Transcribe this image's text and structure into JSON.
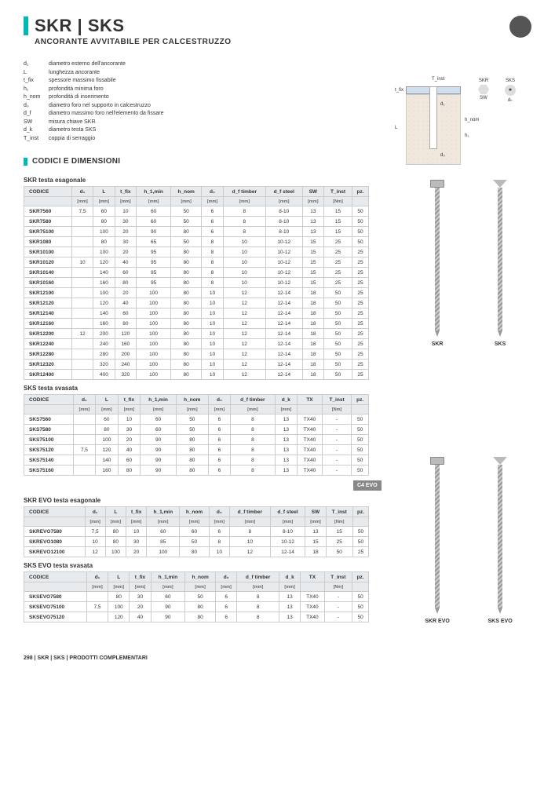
{
  "title": "SKR | SKS",
  "subtitle": "ANCORANTE AVVITABILE PER CALCESTRUZZO",
  "definitions": [
    {
      "sym": "d₁",
      "desc": "diametro esterno dell'ancorante"
    },
    {
      "sym": "L",
      "desc": "lunghezza ancorante"
    },
    {
      "sym": "t_fix",
      "desc": "spessore massimo fissabile"
    },
    {
      "sym": "h₁",
      "desc": "profondità minima foro"
    },
    {
      "sym": "h_nom",
      "desc": "profondità di inserimento"
    },
    {
      "sym": "d₀",
      "desc": "diametro foro nel supporto in calcestruzzo"
    },
    {
      "sym": "d_f",
      "desc": "diametro massimo foro nell'elemento da fissare"
    },
    {
      "sym": "SW",
      "desc": "misura chiave SKR"
    },
    {
      "sym": "d_k",
      "desc": "diametro testa SKS"
    },
    {
      "sym": "T_inst",
      "desc": "coppia di serraggio"
    }
  ],
  "sectionTitle": "CODICI E DIMENSIONI",
  "table1": {
    "title": "SKR testa esagonale",
    "headers": [
      "CODICE",
      "d₁",
      "L",
      "t_fix",
      "h_1,min",
      "h_nom",
      "d₀",
      "d_f timber",
      "d_f steel",
      "SW",
      "T_inst",
      "pz."
    ],
    "units": [
      "",
      "[mm]",
      "[mm]",
      "[mm]",
      "[mm]",
      "[mm]",
      "[mm]",
      "[mm]",
      "[mm]",
      "[mm]",
      "[Nm]",
      ""
    ],
    "rows": [
      [
        "SKR7560",
        "7,5",
        "60",
        "10",
        "60",
        "50",
        "6",
        "8",
        "8-10",
        "13",
        "15",
        "50"
      ],
      [
        "SKR7580",
        "",
        "80",
        "30",
        "60",
        "50",
        "6",
        "8",
        "8-10",
        "13",
        "15",
        "50"
      ],
      [
        "SKR75100",
        "",
        "100",
        "20",
        "90",
        "80",
        "6",
        "8",
        "8-10",
        "13",
        "15",
        "50"
      ],
      [
        "SKR1080",
        "",
        "80",
        "30",
        "65",
        "50",
        "8",
        "10",
        "10-12",
        "15",
        "25",
        "50"
      ],
      [
        "SKR10100",
        "",
        "100",
        "20",
        "95",
        "80",
        "8",
        "10",
        "10-12",
        "15",
        "25",
        "25"
      ],
      [
        "SKR10120",
        "10",
        "120",
        "40",
        "95",
        "80",
        "8",
        "10",
        "10-12",
        "15",
        "25",
        "25"
      ],
      [
        "SKR10140",
        "",
        "140",
        "60",
        "95",
        "80",
        "8",
        "10",
        "10-12",
        "15",
        "25",
        "25"
      ],
      [
        "SKR10160",
        "",
        "160",
        "80",
        "95",
        "80",
        "8",
        "10",
        "10-12",
        "15",
        "25",
        "25"
      ],
      [
        "SKR12100",
        "",
        "100",
        "20",
        "100",
        "80",
        "10",
        "12",
        "12-14",
        "18",
        "50",
        "25"
      ],
      [
        "SKR12120",
        "",
        "120",
        "40",
        "100",
        "80",
        "10",
        "12",
        "12-14",
        "18",
        "50",
        "25"
      ],
      [
        "SKR12140",
        "",
        "140",
        "60",
        "100",
        "80",
        "10",
        "12",
        "12-14",
        "18",
        "50",
        "25"
      ],
      [
        "SKR12160",
        "",
        "160",
        "80",
        "100",
        "80",
        "10",
        "12",
        "12-14",
        "18",
        "50",
        "25"
      ],
      [
        "SKR12200",
        "12",
        "200",
        "120",
        "100",
        "80",
        "10",
        "12",
        "12-14",
        "18",
        "50",
        "25"
      ],
      [
        "SKR12240",
        "",
        "240",
        "160",
        "100",
        "80",
        "10",
        "12",
        "12-14",
        "18",
        "50",
        "25"
      ],
      [
        "SKR12280",
        "",
        "280",
        "200",
        "100",
        "80",
        "10",
        "12",
        "12-14",
        "18",
        "50",
        "25"
      ],
      [
        "SKR12320",
        "",
        "320",
        "240",
        "100",
        "80",
        "10",
        "12",
        "12-14",
        "18",
        "50",
        "25"
      ],
      [
        "SKR12400",
        "",
        "400",
        "320",
        "100",
        "80",
        "10",
        "12",
        "12-14",
        "18",
        "50",
        "25"
      ]
    ]
  },
  "table2": {
    "title": "SKS testa svasata",
    "headers": [
      "CODICE",
      "d₁",
      "L",
      "t_fix",
      "h_1,min",
      "h_nom",
      "d₀",
      "d_f timber",
      "d_k",
      "TX",
      "T_inst",
      "pz."
    ],
    "units": [
      "",
      "[mm]",
      "[mm]",
      "[mm]",
      "[mm]",
      "[mm]",
      "[mm]",
      "[mm]",
      "[mm]",
      "",
      "[Nm]",
      ""
    ],
    "rows": [
      [
        "SKS7560",
        "",
        "60",
        "10",
        "60",
        "50",
        "6",
        "8",
        "13",
        "TX40",
        "-",
        "50"
      ],
      [
        "SKS7580",
        "",
        "80",
        "30",
        "60",
        "50",
        "6",
        "8",
        "13",
        "TX40",
        "-",
        "50"
      ],
      [
        "SKS75100",
        "",
        "100",
        "20",
        "90",
        "80",
        "6",
        "8",
        "13",
        "TX40",
        "-",
        "50"
      ],
      [
        "SKS75120",
        "7,5",
        "120",
        "40",
        "90",
        "80",
        "6",
        "8",
        "13",
        "TX40",
        "-",
        "50"
      ],
      [
        "SKS75140",
        "",
        "140",
        "60",
        "90",
        "80",
        "6",
        "8",
        "13",
        "TX40",
        "-",
        "50"
      ],
      [
        "SKS75160",
        "",
        "160",
        "80",
        "90",
        "80",
        "6",
        "8",
        "13",
        "TX40",
        "-",
        "50"
      ]
    ]
  },
  "c4badge": "C4 EVO",
  "table3": {
    "title": "SKR EVO testa esagonale",
    "headers": [
      "CODICE",
      "d₁",
      "L",
      "t_fix",
      "h_1,min",
      "h_nom",
      "d₀",
      "d_f timber",
      "d_f steel",
      "SW",
      "T_inst",
      "pz."
    ],
    "units": [
      "",
      "[mm]",
      "[mm]",
      "[mm]",
      "[mm]",
      "[mm]",
      "[mm]",
      "[mm]",
      "[mm]",
      "[mm]",
      "[Nm]",
      ""
    ],
    "rows": [
      [
        "SKREVO7580",
        "7,5",
        "80",
        "10",
        "60",
        "60",
        "6",
        "8",
        "8-10",
        "13",
        "15",
        "50"
      ],
      [
        "SKREVO1080",
        "10",
        "80",
        "30",
        "85",
        "50",
        "8",
        "10",
        "10-12",
        "15",
        "25",
        "50"
      ],
      [
        "SKREVO12100",
        "12",
        "100",
        "20",
        "100",
        "80",
        "10",
        "12",
        "12-14",
        "18",
        "50",
        "25"
      ]
    ]
  },
  "table4": {
    "title": "SKS EVO testa svasata",
    "headers": [
      "CODICE",
      "d₁",
      "L",
      "t_fix",
      "h_1,min",
      "h_nom",
      "d₀",
      "d_f timber",
      "d_k",
      "TX",
      "T_inst",
      "pz."
    ],
    "units": [
      "",
      "[mm]",
      "[mm]",
      "[mm]",
      "[mm]",
      "[mm]",
      "[mm]",
      "[mm]",
      "[mm]",
      "",
      "[Nm]",
      ""
    ],
    "rows": [
      [
        "SKSEVO7580",
        "",
        "80",
        "30",
        "60",
        "50",
        "6",
        "8",
        "13",
        "TX40",
        "-",
        "50"
      ],
      [
        "SKSEVO75100",
        "7,5",
        "100",
        "20",
        "90",
        "80",
        "6",
        "8",
        "13",
        "TX40",
        "-",
        "50"
      ],
      [
        "SKSEVO75120",
        "",
        "120",
        "40",
        "90",
        "80",
        "6",
        "8",
        "13",
        "TX40",
        "-",
        "50"
      ]
    ]
  },
  "img1": {
    "left": "SKR",
    "right": "SKS"
  },
  "img2": {
    "left": "SKR EVO",
    "right": "SKS EVO"
  },
  "footer": "298  |  SKR | SKS  |  PRODOTTI COMPLEMENTARI",
  "headIcons": {
    "skr": "SKR",
    "sks": "SKS",
    "sw": "SW",
    "dk": "dₖ"
  },
  "diagLabels": {
    "tinst": "T_inst",
    "tfix": "t_fix",
    "L": "L",
    "d1": "d₁",
    "d0": "d₀",
    "hnom": "h_nom",
    "h1": "h₁"
  }
}
